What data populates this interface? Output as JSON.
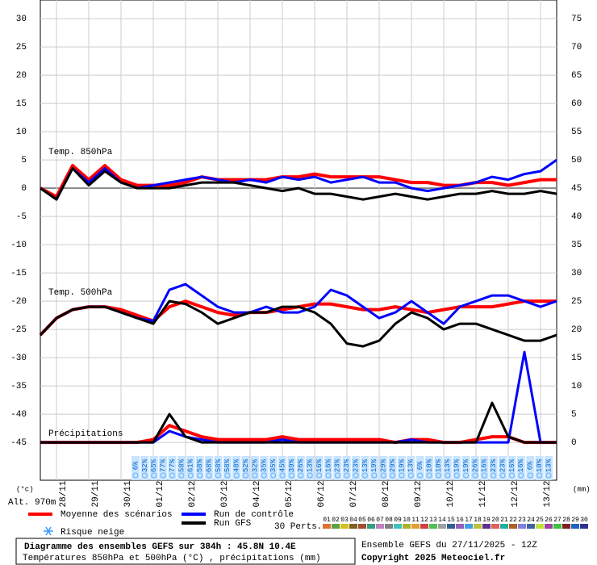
{
  "chart_data": {
    "type": "line",
    "annotations": [
      "Temp. 850hPa",
      "Temp. 500hPa",
      "Précipitations"
    ],
    "y_label": "(°c)",
    "y2_label": "(mm)",
    "altitude": "Alt. 970m",
    "x": [
      0,
      12,
      24,
      36,
      48,
      60,
      72,
      84,
      96,
      108,
      120,
      132,
      144,
      156,
      168,
      180,
      192,
      204,
      216,
      228,
      240,
      252,
      264,
      276,
      288,
      300,
      312,
      324,
      336,
      348,
      360,
      372,
      384
    ],
    "xlim": [
      0,
      384
    ],
    "xticks": [
      {
        "value": 12,
        "label": "28/11"
      },
      {
        "value": 36,
        "label": "29/11"
      },
      {
        "value": 60,
        "label": "30/11"
      },
      {
        "value": 84,
        "label": "01/12"
      },
      {
        "value": 108,
        "label": "02/12"
      },
      {
        "value": 132,
        "label": "03/12"
      },
      {
        "value": 156,
        "label": "04/12"
      },
      {
        "value": 180,
        "label": "05/12"
      },
      {
        "value": 204,
        "label": "06/12"
      },
      {
        "value": 228,
        "label": "07/12"
      },
      {
        "value": 252,
        "label": "08/12"
      },
      {
        "value": 276,
        "label": "09/12"
      },
      {
        "value": 300,
        "label": "10/12"
      },
      {
        "value": 324,
        "label": "11/12"
      },
      {
        "value": 348,
        "label": "12/12"
      },
      {
        "value": 372,
        "label": "13/12"
      }
    ],
    "ylim": [
      -51.7,
      33.3
    ],
    "yticks": [
      30,
      25,
      20,
      15,
      10,
      5,
      0,
      -5,
      -10,
      -15,
      -20,
      -25,
      -30,
      -35,
      -40,
      -45
    ],
    "y2lim": [
      -6.7,
      78.3
    ],
    "y2ticks": [
      75,
      70,
      65,
      60,
      55,
      50,
      45,
      40,
      35,
      30,
      25,
      20,
      15,
      10,
      5,
      0
    ],
    "grid": true,
    "series": [
      {
        "name": "Moyenne des scénarios",
        "color": "#ff0000",
        "t850": [
          0,
          -1.5,
          4,
          1.5,
          4,
          1.5,
          0.5,
          0.5,
          0.5,
          1,
          2,
          1.5,
          1.5,
          1.5,
          1.5,
          2,
          2,
          2.5,
          2,
          2,
          2,
          2,
          1.5,
          1,
          1,
          0.5,
          0.5,
          1,
          1,
          0.5,
          1,
          1.5,
          1.5
        ],
        "t500": [
          -26,
          -23,
          -21.5,
          -21,
          -21,
          -21.5,
          -22.5,
          -23.5,
          -21,
          -20,
          -21,
          -22,
          -22.5,
          -22,
          -22,
          -21.5,
          -21,
          -20.5,
          -20.5,
          -21,
          -21.5,
          -21.5,
          -21,
          -21.5,
          -22,
          -21.5,
          -21,
          -21,
          -21,
          -20.5,
          -20,
          -20,
          -20
        ],
        "precip": [
          0,
          0,
          0,
          0,
          0,
          0,
          0,
          0.5,
          3,
          2,
          1,
          0.5,
          0.5,
          0.5,
          0.5,
          1,
          0.5,
          0.5,
          0.5,
          0.5,
          0.5,
          0.5,
          0,
          0.5,
          0.5,
          0,
          0,
          0.5,
          1,
          1,
          0,
          0,
          0
        ]
      },
      {
        "name": "Run de contrôle",
        "color": "#0000ff",
        "t850": [
          0,
          -2,
          3.5,
          1,
          3.5,
          1,
          0,
          0.5,
          1,
          1.5,
          2,
          1.5,
          1,
          1.5,
          1,
          2,
          1.5,
          2,
          1,
          1.5,
          2,
          1,
          1,
          0,
          -0.5,
          0,
          0.5,
          1,
          2,
          1.5,
          2.5,
          3,
          5
        ],
        "t500": [
          -26,
          -23,
          -21.5,
          -21,
          -21,
          -22,
          -23,
          -23.5,
          -18,
          -17,
          -19,
          -21,
          -22,
          -22,
          -21,
          -22,
          -22,
          -21,
          -18,
          -19,
          -21,
          -23,
          -22,
          -20,
          -22,
          -24,
          -21,
          -20,
          -19,
          -19,
          -20,
          -21,
          -20
        ],
        "precip": [
          0,
          0,
          0,
          0,
          0,
          0,
          0,
          0,
          2,
          1,
          0.5,
          0,
          0,
          0,
          0,
          0.5,
          0,
          0,
          0,
          0,
          0,
          0,
          0,
          0.5,
          0,
          0,
          0,
          0,
          0,
          0,
          16,
          0,
          0
        ]
      },
      {
        "name": "Run GFS",
        "color": "#000000",
        "t850": [
          0,
          -2,
          3.5,
          0.5,
          3,
          1,
          0,
          0,
          0,
          0.5,
          1,
          1,
          1,
          0.5,
          0,
          -0.5,
          0,
          -1,
          -1,
          -1.5,
          -2,
          -1.5,
          -1,
          -1.5,
          -2,
          -1.5,
          -1,
          -1,
          -0.5,
          -1,
          -1,
          -0.5,
          -1
        ],
        "t500": [
          -26,
          -23,
          -21.5,
          -21,
          -21,
          -22,
          -23,
          -24,
          -20,
          -20.5,
          -22,
          -24,
          -23,
          -22,
          -22,
          -21,
          -21,
          -22,
          -24,
          -27.5,
          -28,
          -27,
          -24,
          -22,
          -23,
          -25,
          -24,
          -24,
          -25,
          -26,
          -27,
          -27,
          -26
        ],
        "precip": [
          0,
          0,
          0,
          0,
          0,
          0,
          0,
          0,
          5,
          1,
          0,
          0,
          0,
          0,
          0,
          0,
          0,
          0,
          0,
          0,
          0,
          0,
          0,
          0,
          0,
          0,
          0,
          0,
          7,
          1,
          0,
          0,
          0
        ]
      }
    ],
    "snow_risk": {
      "label": "Risque neige",
      "values": [
        6,
        32,
        65,
        77,
        77,
        58,
        61,
        58,
        68,
        58,
        58,
        48,
        52,
        32,
        35,
        35,
        45,
        39,
        26,
        13,
        16,
        16,
        23,
        23,
        23,
        13,
        19,
        29,
        29,
        19,
        13,
        6,
        10,
        10,
        13,
        19,
        19,
        26,
        16,
        23,
        23,
        16,
        16,
        6,
        10,
        13
      ],
      "value_labels": [
        "6%",
        "32%",
        "65%",
        "77%",
        "77%",
        "58%",
        "61%",
        "58%",
        "68%",
        "58%",
        "58%",
        "48%",
        "52%",
        "32%",
        "35%",
        "35%",
        "45%",
        "39%",
        "26%",
        "13%",
        "16%",
        "16%",
        "23%",
        "23%",
        "23%",
        "13%",
        "19%",
        "29%",
        "29%",
        "19%",
        "13%",
        "6%",
        "10%",
        "10%",
        "13%",
        "19%",
        "19%",
        "26%",
        "16%",
        "23%",
        "23%",
        "16%",
        "16%",
        "6%",
        "10%",
        "13%"
      ]
    },
    "perturbations": {
      "label": "30 Perts.",
      "names": [
        "01",
        "02",
        "03",
        "04",
        "05",
        "06",
        "07",
        "08",
        "09",
        "10",
        "11",
        "12",
        "13",
        "14",
        "15",
        "16",
        "17",
        "18",
        "19",
        "20",
        "21",
        "22",
        "23",
        "24",
        "25",
        "26",
        "27",
        "28",
        "29",
        "30"
      ],
      "colors": [
        "#e07030",
        "#60a040",
        "#d0c020",
        "#806020",
        "#a05030",
        "#30a080",
        "#c080c0",
        "#808080",
        "#40c0c0",
        "#b0b030",
        "#e0a030",
        "#d04040",
        "#50c050",
        "#a0a0a0",
        "#306090",
        "#9060c0",
        "#40a0e0",
        "#c0c040",
        "#603090",
        "#e06060",
        "#20b0a0",
        "#b06020",
        "#8080e0",
        "#4060a0",
        "#c0e040",
        "#a040a0",
        "#40c040",
        "#802020",
        "#2060c0",
        "#303090"
      ]
    },
    "footer": {
      "title": "Diagramme des ensembles GEFS sur 384h : 45.8N 10.4E",
      "subtitle": "Températures 850hPa et 500hPa (°C) , précipitations (mm)",
      "run": "Ensemble GEFS du 27/11/2025 - 12Z",
      "copyright": "Copyright 2025 Meteociel.fr"
    }
  }
}
